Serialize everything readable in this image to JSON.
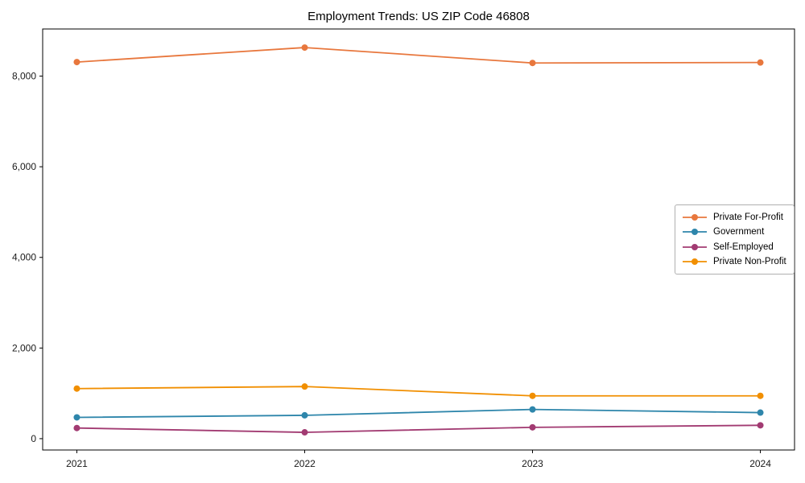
{
  "chart_data": {
    "type": "line",
    "title": "Employment Trends: US ZIP Code 46808",
    "x": [
      2021,
      2022,
      2023,
      2024
    ],
    "x_tick_labels": [
      "2021",
      "2022",
      "2023",
      "2024"
    ],
    "y_ticks": [
      0,
      2000,
      4000,
      6000,
      8000
    ],
    "y_tick_labels": [
      "0",
      "2,000",
      "4,000",
      "6,000",
      "8,000"
    ],
    "xlim": [
      2020.85,
      2024.15
    ],
    "ylim": [
      -250,
      9040
    ],
    "grid": false,
    "legend_position": "center-right",
    "marker": "circle",
    "xlabel": "",
    "ylabel": "",
    "series": [
      {
        "name": "Private For-Profit",
        "color": "#E8773D",
        "values": [
          8310,
          8630,
          8290,
          8300
        ]
      },
      {
        "name": "Government",
        "color": "#2E86AB",
        "values": [
          470,
          515,
          645,
          575
        ]
      },
      {
        "name": "Self-Employed",
        "color": "#A23B72",
        "values": [
          235,
          140,
          250,
          295
        ]
      },
      {
        "name": "Private Non-Profit",
        "color": "#F18F01",
        "values": [
          1105,
          1150,
          945,
          945
        ]
      }
    ],
    "axis_color": "#000000",
    "tick_label_color": "#1a1a1a"
  }
}
